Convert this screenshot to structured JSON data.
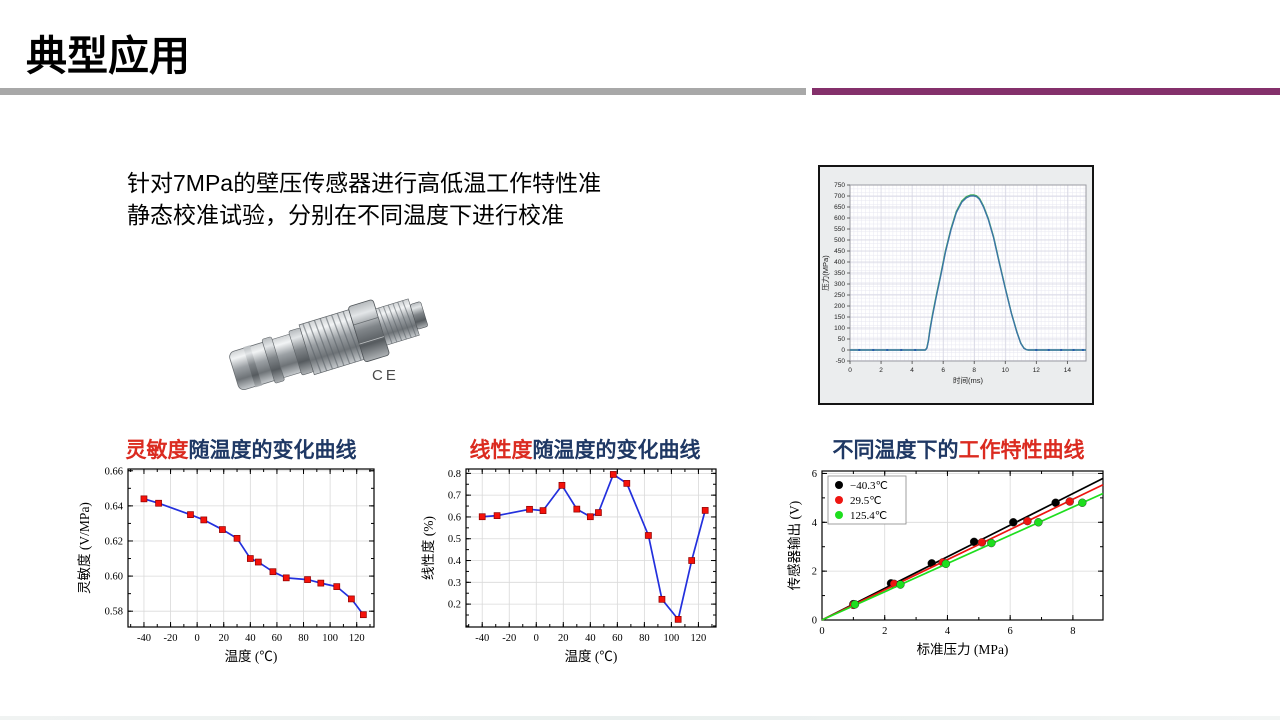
{
  "slide": {
    "title": "典型应用",
    "intro_text": "针对7MPa的壁压传感器进行高低温工作特性准静态校准试验，分别在不同温度下进行校准",
    "sensor_mark": "CE",
    "divider_gray": "#a8a8a8",
    "divider_purple": "#84306b",
    "title_navy": "#1f3864",
    "title_red": "#db2b20"
  },
  "chart_data": [
    {
      "id": "pressure-time",
      "type": "line",
      "title": "",
      "xlabel": "时间(ms)",
      "ylabel": "压力(MPa)",
      "xlim": [
        0,
        15.2
      ],
      "ylim": [
        -50,
        750
      ],
      "x_ticks": [
        0,
        2,
        4,
        6,
        8,
        10,
        12,
        14
      ],
      "y_ticks": [
        -50,
        0,
        50,
        100,
        150,
        200,
        250,
        300,
        350,
        400,
        450,
        500,
        550,
        600,
        650,
        700,
        750
      ],
      "grid": "fine-mesh",
      "legend_position": "none",
      "series": [
        {
          "name": "pressure-green",
          "color": "#3fae53",
          "width": 1.4,
          "x": [
            0,
            4.85,
            4.95,
            5.05,
            5.15,
            5.3,
            5.55,
            5.85,
            6.15,
            6.5,
            6.85,
            7.2,
            7.5,
            7.75,
            7.95,
            8.15,
            8.35,
            8.6,
            8.9,
            9.25,
            9.6,
            10.0,
            10.4,
            10.75,
            11.0,
            11.2,
            11.35,
            11.45,
            15.2
          ],
          "y": [
            0,
            0,
            10,
            44,
            95,
            156,
            246,
            346,
            451,
            551,
            630,
            677,
            697,
            704,
            705,
            701,
            688,
            654,
            599,
            514,
            404,
            283,
            167,
            82,
            31,
            9,
            2,
            0,
            0
          ]
        },
        {
          "name": "pressure-blue",
          "color": "#3c74a6",
          "width": 1.4,
          "x": [
            0,
            4.85,
            4.95,
            5.05,
            5.15,
            5.3,
            5.55,
            5.85,
            6.15,
            6.5,
            6.85,
            7.2,
            7.5,
            7.75,
            7.95,
            8.15,
            8.35,
            8.6,
            8.9,
            9.25,
            9.6,
            10.0,
            10.4,
            10.75,
            11.0,
            11.2,
            11.35,
            11.45,
            15.2
          ],
          "y": [
            0,
            0,
            8,
            40,
            90,
            150,
            240,
            340,
            445,
            545,
            625,
            672,
            692,
            700,
            701,
            697,
            684,
            650,
            595,
            510,
            400,
            280,
            165,
            80,
            30,
            8,
            2,
            0,
            0
          ]
        }
      ]
    },
    {
      "id": "sensitivity",
      "type": "line",
      "title_parts": [
        {
          "text": "灵敏度",
          "color": "#db2b20"
        },
        {
          "text": "随温度的变化曲线",
          "color": "#1f3864"
        }
      ],
      "xlabel": "温度 (℃)",
      "ylabel": "灵敏度 (V/MPa)",
      "xlim": [
        -52,
        133
      ],
      "ylim": [
        0.571,
        0.661
      ],
      "x_ticks": [
        -40,
        -20,
        0,
        20,
        40,
        60,
        80,
        100,
        120
      ],
      "y_ticks": [
        0.58,
        0.6,
        0.62,
        0.64,
        0.66
      ],
      "y_tick_labels": [
        "0.58",
        "0.60",
        "0.62",
        "0.64",
        "0.66"
      ],
      "grid": "major",
      "legend_position": "none",
      "series": [
        {
          "name": "灵敏度",
          "color": "#2330dd",
          "width": 1.7,
          "marker": "square",
          "marker_color": "#f5120b",
          "x": [
            -40,
            -29,
            -5,
            5,
            19,
            30,
            40,
            46,
            57,
            67,
            83,
            93,
            105,
            116,
            125
          ],
          "y": [
            0.644,
            0.6415,
            0.635,
            0.632,
            0.6265,
            0.6215,
            0.61,
            0.608,
            0.6025,
            0.599,
            0.598,
            0.596,
            0.594,
            0.587,
            0.578
          ]
        }
      ]
    },
    {
      "id": "linearity",
      "type": "line",
      "title_parts": [
        {
          "text": "线性度",
          "color": "#db2b20"
        },
        {
          "text": "随温度的变化曲线",
          "color": "#1f3864"
        }
      ],
      "xlabel": "温度 (℃)",
      "ylabel": "线性度 (%)",
      "xlim": [
        -52,
        133
      ],
      "ylim": [
        0.095,
        0.82
      ],
      "x_ticks": [
        -40,
        -20,
        0,
        20,
        40,
        60,
        80,
        100,
        120
      ],
      "y_ticks": [
        0.2,
        0.3,
        0.4,
        0.5,
        0.6,
        0.7,
        0.8
      ],
      "y_tick_labels": [
        "0.2",
        "0.3",
        "0.4",
        "0.5",
        "0.6",
        "0.7",
        "0.8"
      ],
      "grid": "major",
      "legend_position": "none",
      "series": [
        {
          "name": "线性度",
          "color": "#2330dd",
          "width": 1.7,
          "marker": "square",
          "marker_color": "#f5120b",
          "x": [
            -40,
            -29,
            -5,
            5,
            19,
            30,
            40,
            46,
            57,
            67,
            83,
            93,
            105,
            115,
            125
          ],
          "y": [
            0.601,
            0.606,
            0.635,
            0.629,
            0.745,
            0.636,
            0.601,
            0.62,
            0.795,
            0.754,
            0.515,
            0.222,
            0.13,
            0.4,
            0.63
          ]
        }
      ]
    },
    {
      "id": "characteristics",
      "type": "scatter-line",
      "title_parts": [
        {
          "text": "不同温度下的",
          "color": "#1f3864"
        },
        {
          "text": "工作特性曲线",
          "color": "#db2b20"
        }
      ],
      "xlabel": "标准压力 (MPa)",
      "ylabel": "传感器输出 (V)",
      "xlim": [
        0,
        8.96
      ],
      "ylim": [
        0,
        6.1
      ],
      "x_ticks": [
        0,
        2,
        4,
        6,
        8
      ],
      "y_ticks": [
        0,
        2,
        4,
        6
      ],
      "y_tick_labels": [
        "0",
        "2",
        "4",
        "6"
      ],
      "grid": "major",
      "legend_position": "top-left",
      "series": [
        {
          "name": "−40.3℃",
          "color": "#000000",
          "width": 1.7,
          "marker": "circle",
          "marker_color": "#000000",
          "slope": 0.647,
          "x": [
            1.0,
            2.2,
            3.5,
            4.85,
            6.1,
            7.45
          ],
          "y": [
            0.65,
            1.5,
            2.32,
            3.2,
            4.0,
            4.8
          ]
        },
        {
          "name": "29.5℃",
          "color": "#ee1511",
          "width": 1.7,
          "marker": "circle",
          "marker_color": "#ee1511",
          "slope": 0.618,
          "x": [
            1.0,
            2.3,
            3.85,
            5.1,
            6.55,
            7.9
          ],
          "y": [
            0.62,
            1.48,
            2.36,
            3.18,
            4.05,
            4.85
          ]
        },
        {
          "name": "125.4℃",
          "color": "#1ede1e",
          "width": 1.7,
          "marker": "circle",
          "marker_color": "#1ede1e",
          "slope": 0.578,
          "x": [
            1.05,
            2.5,
            3.95,
            5.4,
            6.9,
            8.3
          ],
          "y": [
            0.64,
            1.45,
            2.3,
            3.15,
            4.0,
            4.8
          ]
        }
      ]
    }
  ]
}
